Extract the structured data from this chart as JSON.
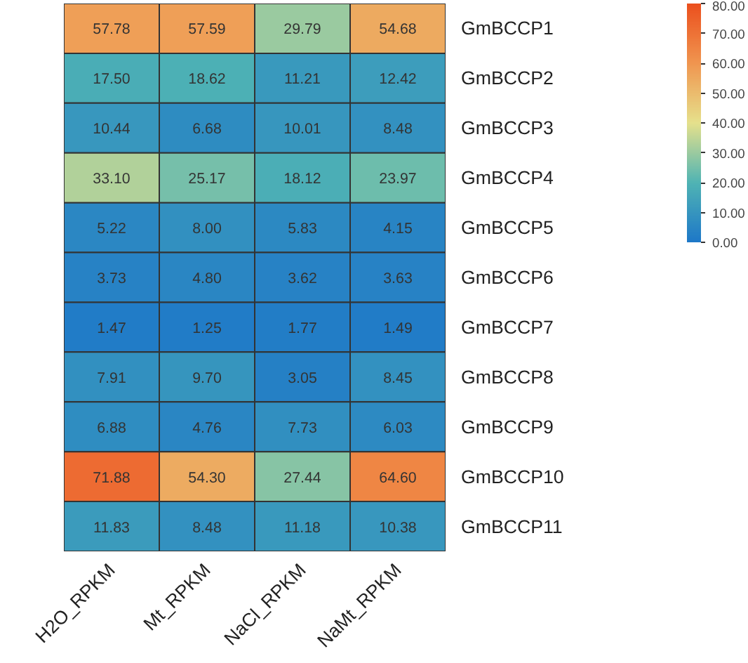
{
  "chart_data": {
    "type": "heatmap",
    "categories": [
      "H2O_RPKM",
      "Mt_RPKM",
      "NaCl_RPKM",
      "NaMt_RPKM"
    ],
    "y_categories": [
      "GmBCCP1",
      "GmBCCP2",
      "GmBCCP3",
      "GmBCCP4",
      "GmBCCP5",
      "GmBCCP6",
      "GmBCCP7",
      "GmBCCP8",
      "GmBCCP9",
      "GmBCCP10",
      "GmBCCP11"
    ],
    "cells": [
      [
        57.78,
        57.59,
        29.79,
        54.68
      ],
      [
        17.5,
        18.62,
        11.21,
        12.42
      ],
      [
        10.44,
        6.68,
        10.01,
        8.48
      ],
      [
        33.1,
        25.17,
        18.12,
        23.97
      ],
      [
        5.22,
        8.0,
        5.83,
        4.15
      ],
      [
        3.73,
        4.8,
        3.62,
        3.63
      ],
      [
        1.47,
        1.25,
        1.77,
        1.49
      ],
      [
        7.91,
        9.7,
        3.05,
        8.45
      ],
      [
        6.88,
        4.76,
        7.73,
        6.03
      ],
      [
        71.88,
        54.3,
        27.44,
        64.6
      ],
      [
        11.83,
        8.48,
        11.18,
        10.38
      ]
    ],
    "cell_labels": [
      [
        "57.78",
        "57.59",
        "29.79",
        "54.68"
      ],
      [
        "17.50",
        "18.62",
        "11.21",
        "12.42"
      ],
      [
        "10.44",
        "6.68",
        "10.01",
        "8.48"
      ],
      [
        "33.10",
        "25.17",
        "18.12",
        "23.97"
      ],
      [
        "5.22",
        "8.00",
        "5.83",
        "4.15"
      ],
      [
        "3.73",
        "4.80",
        "3.62",
        "3.63"
      ],
      [
        "1.47",
        "1.25",
        "1.77",
        "1.49"
      ],
      [
        "7.91",
        "9.70",
        "3.05",
        "8.45"
      ],
      [
        "6.88",
        "4.76",
        "7.73",
        "6.03"
      ],
      [
        "71.88",
        "54.30",
        "27.44",
        "64.60"
      ],
      [
        "11.83",
        "8.48",
        "11.18",
        "10.38"
      ]
    ],
    "clim": [
      0,
      80
    ],
    "cticks": [
      {
        "value": 0,
        "label": "0.00"
      },
      {
        "value": 10,
        "label": "10.00"
      },
      {
        "value": 20,
        "label": "20.00"
      },
      {
        "value": 30,
        "label": "30.00"
      },
      {
        "value": 40,
        "label": "40.00"
      },
      {
        "value": 50,
        "label": "50.00"
      },
      {
        "value": 60,
        "label": "60.00"
      },
      {
        "value": 70,
        "label": "70.00"
      },
      {
        "value": 80,
        "label": "80.00"
      }
    ]
  }
}
